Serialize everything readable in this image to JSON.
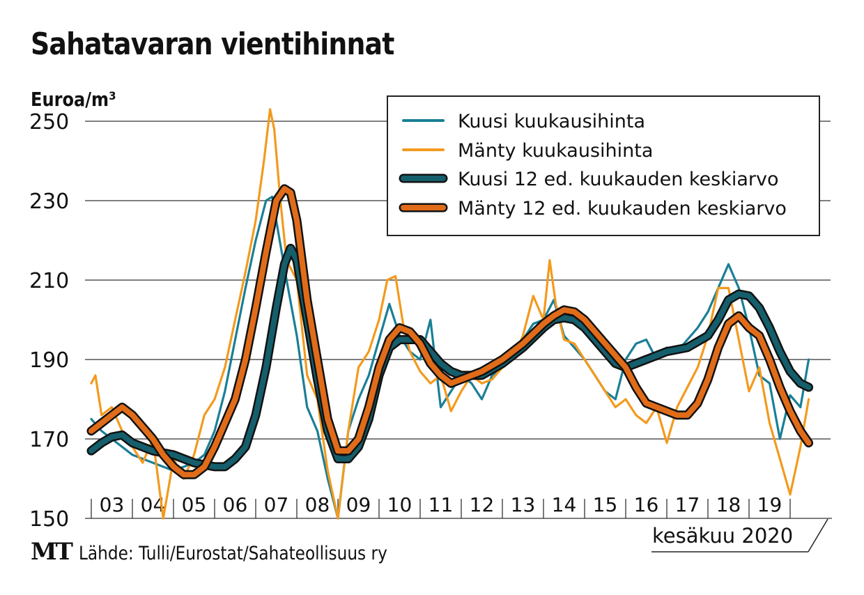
{
  "title": "Sahatavaran vientihinnat",
  "unit_label": "Euroa/m³",
  "footer": {
    "logo": "MT",
    "source": "Lähde: Tulli/Eurostat/Sahateollisuus ry"
  },
  "date_label": "kesäkuu 2020",
  "colors": {
    "kuusi_monthly": "#1a7f96",
    "manty_monthly": "#f39a1e",
    "kuusi_avg": "#155e6b",
    "manty_avg": "#e06c1a",
    "grid": "#555555"
  },
  "chart_data": {
    "type": "line",
    "title": "Sahatavaran vientihinnat",
    "ylabel": "Euroa/m³",
    "xlabel": "",
    "ylim": [
      150,
      250
    ],
    "yticks": [
      150,
      170,
      190,
      210,
      230,
      250
    ],
    "xticks": [
      "03",
      "04",
      "05",
      "06",
      "07",
      "08",
      "09",
      "10",
      "11",
      "12",
      "13",
      "14",
      "15",
      "16",
      "17",
      "18",
      "19"
    ],
    "xrange": [
      2003.0,
      2020.5
    ],
    "grid": true,
    "legend_position": "top-right",
    "legend": [
      "Kuusi kuukausihinta",
      "Mänty kuukausihinta",
      "Kuusi 12 ed. kuukauden keskiarvo",
      "Mänty 12 ed. kuukauden keskiarvo"
    ],
    "series": [
      {
        "name": "Kuusi kuukausihinta",
        "key": "kuusi_monthly",
        "x": [
          2003.0,
          2003.25,
          2003.5,
          2003.75,
          2004.0,
          2004.25,
          2004.5,
          2004.75,
          2005.0,
          2005.25,
          2005.5,
          2005.75,
          2006.0,
          2006.25,
          2006.5,
          2006.75,
          2007.0,
          2007.25,
          2007.4,
          2007.55,
          2007.75,
          2008.0,
          2008.25,
          2008.5,
          2008.75,
          2009.0,
          2009.25,
          2009.5,
          2009.75,
          2010.0,
          2010.25,
          2010.5,
          2010.75,
          2011.0,
          2011.25,
          2011.5,
          2011.75,
          2012.0,
          2012.25,
          2012.5,
          2012.75,
          2013.0,
          2013.25,
          2013.5,
          2013.75,
          2014.0,
          2014.25,
          2014.5,
          2014.75,
          2015.0,
          2015.25,
          2015.5,
          2015.75,
          2016.0,
          2016.25,
          2016.5,
          2016.75,
          2017.0,
          2017.25,
          2017.5,
          2017.75,
          2018.0,
          2018.25,
          2018.5,
          2018.75,
          2019.0,
          2019.25,
          2019.5,
          2019.75,
          2020.0,
          2020.25,
          2020.45
        ],
        "values": [
          175,
          172,
          170,
          168,
          166,
          165,
          164,
          163,
          162,
          163,
          164,
          166,
          172,
          182,
          195,
          208,
          220,
          230,
          231,
          222,
          210,
          196,
          178,
          172,
          160,
          150,
          172,
          180,
          186,
          195,
          204,
          196,
          192,
          190,
          200,
          178,
          182,
          186,
          184,
          180,
          186,
          188,
          193,
          195,
          199,
          200,
          205,
          196,
          193,
          190,
          186,
          182,
          180,
          190,
          194,
          195,
          190,
          193,
          192,
          195,
          198,
          202,
          208,
          214,
          208,
          198,
          186,
          184,
          170,
          181,
          178,
          190
        ]
      },
      {
        "name": "Mänty kuukausihinta",
        "key": "manty_monthly",
        "x": [
          2003.0,
          2003.1,
          2003.25,
          2003.5,
          2003.75,
          2004.0,
          2004.25,
          2004.5,
          2004.75,
          2005.0,
          2005.25,
          2005.5,
          2005.75,
          2006.0,
          2006.25,
          2006.5,
          2006.75,
          2007.0,
          2007.2,
          2007.35,
          2007.45,
          2007.6,
          2007.75,
          2008.0,
          2008.25,
          2008.5,
          2008.75,
          2009.0,
          2009.25,
          2009.5,
          2009.75,
          2010.0,
          2010.2,
          2010.4,
          2010.6,
          2010.75,
          2011.0,
          2011.25,
          2011.5,
          2011.75,
          2012.0,
          2012.25,
          2012.5,
          2012.75,
          2013.0,
          2013.25,
          2013.5,
          2013.75,
          2014.0,
          2014.15,
          2014.3,
          2014.5,
          2014.75,
          2015.0,
          2015.25,
          2015.5,
          2015.75,
          2016.0,
          2016.25,
          2016.5,
          2016.75,
          2017.0,
          2017.25,
          2017.5,
          2017.75,
          2018.0,
          2018.25,
          2018.5,
          2018.75,
          2019.0,
          2019.25,
          2019.5,
          2019.75,
          2020.0,
          2020.25,
          2020.45
        ],
        "values": [
          184,
          186,
          176,
          178,
          172,
          168,
          164,
          170,
          150,
          165,
          160,
          166,
          176,
          180,
          188,
          200,
          212,
          225,
          240,
          253,
          248,
          230,
          215,
          210,
          186,
          180,
          162,
          150,
          172,
          188,
          192,
          200,
          210,
          211,
          198,
          192,
          187,
          184,
          186,
          177,
          182,
          186,
          184,
          185,
          188,
          190,
          196,
          206,
          200,
          215,
          204,
          195,
          194,
          190,
          186,
          182,
          178,
          180,
          176,
          174,
          178,
          169,
          178,
          183,
          188,
          196,
          208,
          208,
          195,
          182,
          188,
          174,
          165,
          156,
          168,
          180
        ]
      },
      {
        "name": "Kuusi 12 ed. kuukauden keskiarvo",
        "key": "kuusi_avg",
        "x": [
          2003.0,
          2003.25,
          2003.5,
          2003.75,
          2004.0,
          2004.5,
          2005.0,
          2005.5,
          2006.0,
          2006.25,
          2006.5,
          2006.75,
          2007.0,
          2007.25,
          2007.5,
          2007.7,
          2007.85,
          2008.0,
          2008.25,
          2008.5,
          2008.75,
          2009.0,
          2009.25,
          2009.5,
          2009.75,
          2010.0,
          2010.25,
          2010.5,
          2010.75,
          2011.0,
          2011.25,
          2011.5,
          2011.75,
          2012.0,
          2012.5,
          2013.0,
          2013.5,
          2014.0,
          2014.25,
          2014.5,
          2014.75,
          2015.0,
          2015.25,
          2015.5,
          2015.75,
          2016.0,
          2016.5,
          2017.0,
          2017.5,
          2018.0,
          2018.25,
          2018.5,
          2018.75,
          2019.0,
          2019.25,
          2019.5,
          2019.75,
          2020.0,
          2020.25,
          2020.45
        ],
        "values": [
          167,
          169,
          170.5,
          171,
          169,
          167,
          166,
          164,
          163,
          163,
          165,
          168,
          176,
          188,
          203,
          214,
          218,
          215,
          200,
          185,
          172,
          165,
          165,
          168,
          175,
          186,
          193,
          195,
          195,
          195,
          192,
          189,
          187,
          186,
          186,
          189,
          193,
          198,
          200,
          200.5,
          200,
          198,
          195,
          192,
          189,
          188,
          190,
          192,
          193,
          196,
          200,
          205,
          206.5,
          206,
          203,
          198,
          192,
          187,
          184,
          183
        ]
      },
      {
        "name": "Mänty 12 ed. kuukauden keskiarvo",
        "key": "manty_avg",
        "x": [
          2003.0,
          2003.25,
          2003.5,
          2003.75,
          2004.0,
          2004.25,
          2004.5,
          2004.75,
          2005.0,
          2005.25,
          2005.5,
          2005.75,
          2006.0,
          2006.25,
          2006.5,
          2006.75,
          2007.0,
          2007.25,
          2007.5,
          2007.7,
          2007.85,
          2008.0,
          2008.25,
          2008.5,
          2008.75,
          2009.0,
          2009.25,
          2009.5,
          2009.75,
          2010.0,
          2010.25,
          2010.5,
          2010.75,
          2011.0,
          2011.25,
          2011.5,
          2011.75,
          2012.0,
          2012.5,
          2013.0,
          2013.5,
          2014.0,
          2014.25,
          2014.5,
          2014.75,
          2015.0,
          2015.5,
          2016.0,
          2016.25,
          2016.5,
          2016.75,
          2017.0,
          2017.25,
          2017.5,
          2017.75,
          2018.0,
          2018.25,
          2018.5,
          2018.75,
          2019.0,
          2019.25,
          2019.5,
          2019.75,
          2020.0,
          2020.25,
          2020.45
        ],
        "values": [
          172,
          174,
          176,
          178,
          176,
          173,
          170,
          166,
          163,
          161,
          161,
          163,
          168,
          174,
          180,
          190,
          203,
          217,
          230,
          233,
          232,
          225,
          205,
          190,
          175,
          167,
          167,
          170,
          178,
          188,
          195,
          198,
          197,
          194,
          189,
          186,
          184,
          185,
          187,
          190,
          194,
          199,
          201,
          202.5,
          202,
          200,
          194,
          188,
          183,
          179,
          178,
          177,
          176,
          176,
          179,
          185,
          193,
          199,
          201,
          198,
          196,
          190,
          183,
          177,
          172,
          169
        ]
      }
    ]
  }
}
